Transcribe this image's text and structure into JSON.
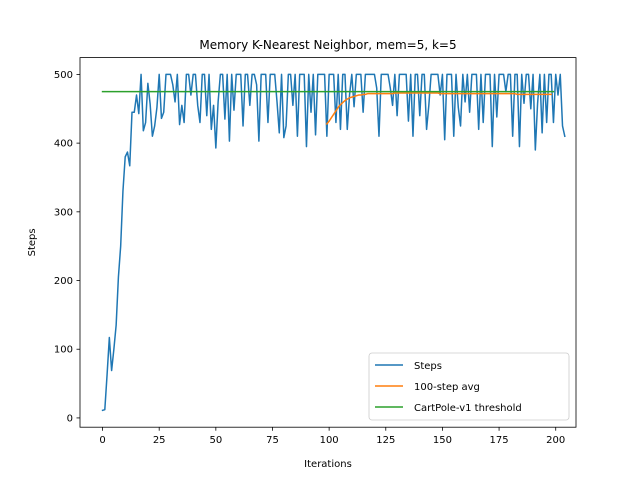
{
  "chart_data": {
    "type": "line",
    "title": "Memory K-Nearest Neighbor, mem=5, k=5",
    "xlabel": "Iterations",
    "ylabel": "Steps",
    "xlim": [
      -9.95,
      208.95
    ],
    "ylim": [
      -13.5,
      524.5
    ],
    "xticks": [
      0,
      25,
      50,
      75,
      100,
      125,
      150,
      175,
      200
    ],
    "yticks": [
      0,
      100,
      200,
      300,
      400,
      500
    ],
    "legend_position": "lower-right",
    "series": [
      {
        "name": "Steps",
        "color": "#1f77b4",
        "x_start": 0,
        "values": [
          11,
          12,
          63,
          117,
          69,
          100,
          135,
          205,
          250,
          330,
          380,
          387,
          367,
          445,
          445,
          470,
          443,
          500,
          418,
          430,
          487,
          457,
          410,
          425,
          452,
          500,
          436,
          445,
          500,
          500,
          500,
          485,
          460,
          500,
          427,
          455,
          430,
          500,
          500,
          470,
          500,
          500,
          455,
          430,
          500,
          500,
          440,
          500,
          420,
          455,
          393,
          460,
          500,
          500,
          435,
          500,
          403,
          500,
          448,
          500,
          500,
          500,
          425,
          500,
          500,
          455,
          500,
          500,
          485,
          403,
          500,
          500,
          500,
          430,
          500,
          500,
          500,
          460,
          415,
          500,
          408,
          425,
          500,
          500,
          455,
          500,
          410,
          500,
          500,
          500,
          395,
          500,
          445,
          500,
          412,
          500,
          500,
          500,
          500,
          410,
          500,
          500,
          500,
          430,
          500,
          420,
          500,
          500,
          420,
          470,
          500,
          453,
          500,
          500,
          500,
          445,
          500,
          500,
          500,
          500,
          500,
          480,
          410,
          500,
          500,
          500,
          500,
          480,
          455,
          500,
          440,
          500,
          500,
          500,
          500,
          432,
          500,
          410,
          500,
          500,
          440,
          500,
          500,
          420,
          455,
          500,
          500,
          500,
          500,
          470,
          500,
          405,
          500,
          500,
          500,
          410,
          500,
          452,
          425,
          500,
          460,
          500,
          445,
          500,
          500,
          500,
          420,
          500,
          430,
          500,
          500,
          500,
          395,
          500,
          438,
          500,
          500,
          500,
          475,
          500,
          500,
          410,
          500,
          500,
          395,
          500,
          458,
          500,
          500,
          450,
          500,
          390,
          458,
          500,
          415,
          500,
          430,
          500,
          500,
          430,
          500,
          470,
          500,
          425,
          410
        ]
      },
      {
        "name": "100-step avg",
        "color": "#ff7f0e",
        "x_start": 99,
        "values": [
          428,
          432,
          437,
          442,
          447,
          452,
          456,
          459,
          462,
          464,
          466,
          467,
          468,
          469,
          470,
          470,
          471,
          471,
          472,
          472,
          472,
          472,
          472,
          472,
          472,
          472,
          472,
          472,
          472,
          472,
          473,
          473,
          473,
          473,
          473,
          473,
          473,
          473,
          473,
          473,
          473,
          473,
          473,
          473,
          473,
          473,
          473,
          473,
          473,
          473,
          472,
          472,
          472,
          472,
          472,
          472,
          472,
          472,
          472,
          472,
          472,
          472,
          472,
          472,
          472,
          472,
          472,
          472,
          472,
          472,
          472,
          472,
          472,
          472,
          472,
          472,
          472,
          472,
          472,
          472,
          472,
          472,
          472,
          472,
          471,
          471,
          471,
          471,
          471,
          471,
          471,
          471,
          471,
          471,
          471,
          471,
          471,
          471,
          471,
          471
        ]
      },
      {
        "name": "CartPole-v1 threshold",
        "color": "#2ca02c",
        "x_start": 0,
        "x_end": 199,
        "constant": 475
      }
    ]
  }
}
